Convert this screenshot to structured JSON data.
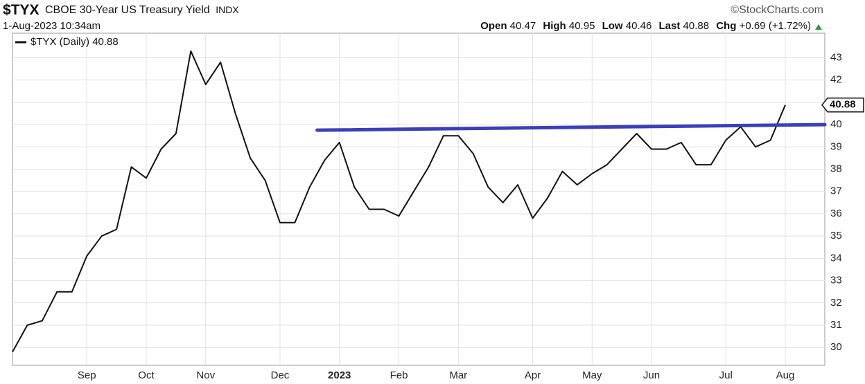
{
  "chart_data": {
    "type": "line",
    "symbol": "$TYX",
    "title": "CBOE 30-Year US Treasury Yield",
    "exchange": "INDX",
    "source": "©StockCharts.com",
    "timestamp": "1-Aug-2023 10:34am",
    "quote": {
      "open_label": "Open",
      "open": 40.47,
      "high_label": "High",
      "high": 40.95,
      "low_label": "Low",
      "low": 40.46,
      "last_label": "Last",
      "last": 40.88,
      "chg_label": "Chg",
      "chg": "+0.69",
      "chg_pct": "(+1.72%)"
    },
    "categories": [
      null,
      null,
      null,
      null,
      null,
      "Sep",
      null,
      null,
      null,
      "Oct",
      null,
      null,
      null,
      "Nov",
      null,
      null,
      null,
      null,
      "Dec",
      null,
      null,
      null,
      "2023",
      null,
      null,
      null,
      "Feb",
      null,
      null,
      null,
      "Mar",
      null,
      null,
      null,
      null,
      "Apr",
      null,
      null,
      null,
      "May",
      null,
      null,
      null,
      "Jun",
      null,
      null,
      null,
      null,
      "Jul",
      null,
      null,
      null,
      "Aug"
    ],
    "series": [
      {
        "name": "$TYX (Daily)",
        "color": "#111111",
        "values": [
          29.8,
          31.0,
          31.2,
          32.5,
          32.5,
          34.1,
          35.0,
          35.3,
          38.1,
          37.6,
          38.9,
          39.6,
          43.3,
          41.8,
          42.8,
          40.5,
          38.5,
          37.5,
          35.6,
          35.6,
          37.2,
          38.4,
          39.2,
          37.2,
          36.2,
          36.2,
          35.9,
          37.0,
          38.1,
          39.5,
          39.5,
          38.7,
          37.2,
          36.5,
          37.3,
          35.8,
          36.7,
          37.9,
          37.3,
          37.8,
          38.2,
          38.9,
          39.6,
          38.9,
          38.9,
          39.2,
          38.2,
          38.2,
          39.3,
          39.9,
          39.0,
          39.3,
          40.88
        ]
      }
    ],
    "trendline": {
      "color": "#3a40b8",
      "values": [
        39.75,
        40.0
      ]
    },
    "ylim": [
      29.2,
      44.1
    ],
    "yticks": [
      30,
      31,
      32,
      33,
      34,
      35,
      36,
      37,
      38,
      39,
      40,
      41,
      42,
      43
    ],
    "grid": true
  }
}
